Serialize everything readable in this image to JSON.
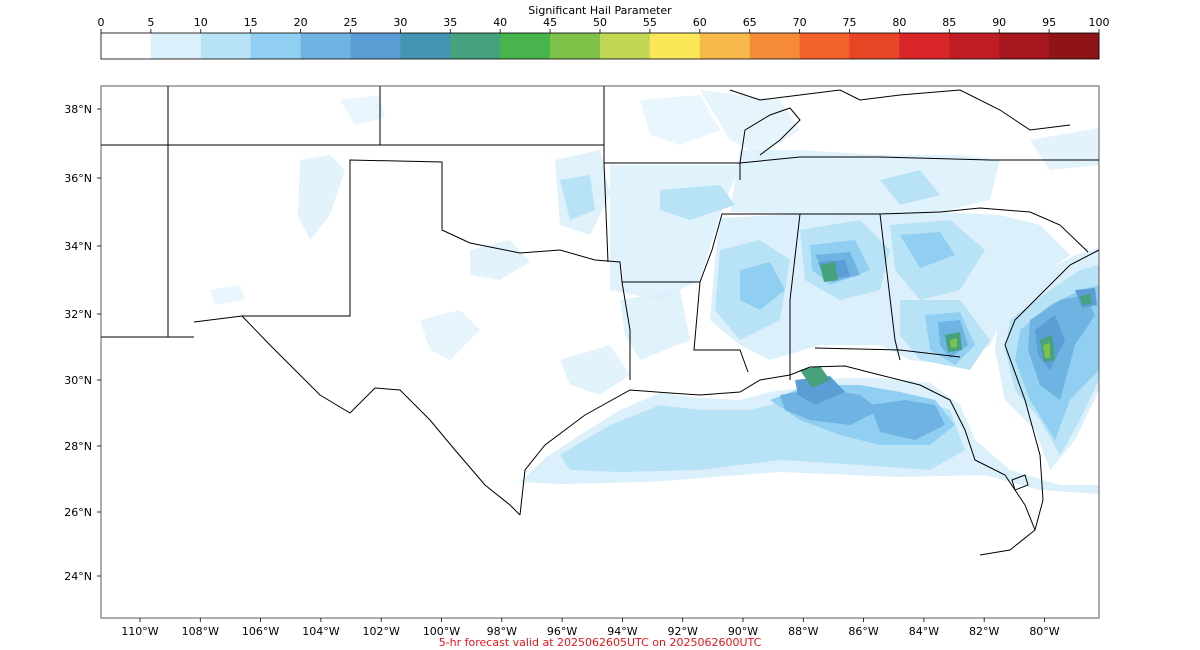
{
  "colorbar": {
    "title": "Significant Hail Parameter",
    "ticks": [
      "0",
      "5",
      "10",
      "15",
      "20",
      "25",
      "30",
      "35",
      "40",
      "45",
      "50",
      "55",
      "60",
      "65",
      "70",
      "75",
      "80",
      "85",
      "90",
      "95",
      "100"
    ],
    "colors": [
      "#ffffff",
      "#dbf0fb",
      "#b8e3f6",
      "#90cff1",
      "#6fb3e2",
      "#5b9ed6",
      "#4593b3",
      "#45a27c",
      "#47b44c",
      "#7ec24a",
      "#c2d855",
      "#fbe758",
      "#f8b94a",
      "#f68b37",
      "#f2612a",
      "#e74526",
      "#d72528",
      "#c01c23",
      "#a6171e",
      "#8e1418"
    ]
  },
  "map": {
    "lat_labels": [
      "38°N",
      "36°N",
      "34°N",
      "32°N",
      "30°N",
      "28°N",
      "26°N",
      "24°N"
    ],
    "lon_labels": [
      "110°W",
      "108°W",
      "106°W",
      "104°W",
      "102°W",
      "100°W",
      "98°W",
      "96°W",
      "94°W",
      "92°W",
      "90°W",
      "88°W",
      "86°W",
      "84°W",
      "82°W",
      "80°W"
    ]
  },
  "caption": "5-hr forecast valid at 2025062605UTC on 2025062600UTC"
}
